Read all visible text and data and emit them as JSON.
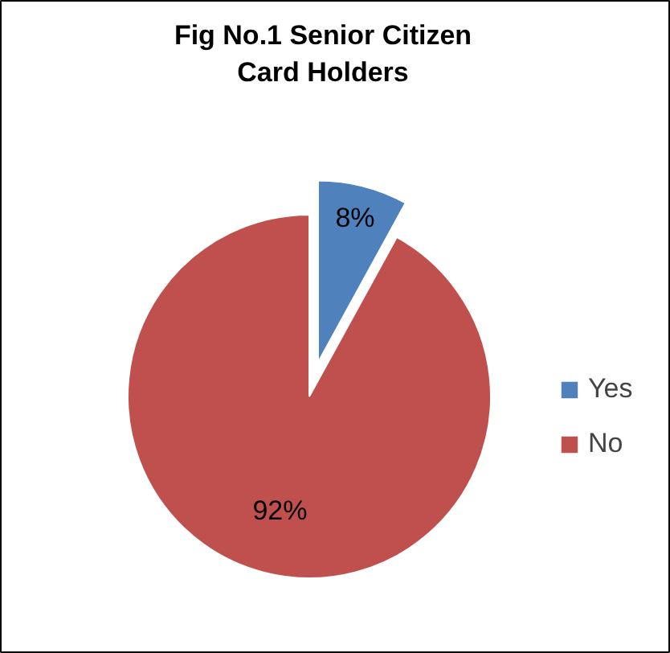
{
  "chart_data": {
    "type": "pie",
    "title": "Fig No.1 Senior Citizen Card Holders",
    "categories": [
      "Yes",
      "No"
    ],
    "values": [
      8,
      92
    ],
    "colors": [
      "#4f81bd",
      "#c0504d"
    ],
    "value_labels": [
      "8%",
      "92%"
    ],
    "legend": "right"
  }
}
